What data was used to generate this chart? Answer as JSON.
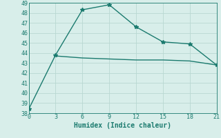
{
  "xlabel": "Humidex (Indice chaleur)",
  "line1_x": [
    0,
    3,
    6,
    9,
    12,
    15,
    18,
    21
  ],
  "line1_y": [
    38.4,
    43.8,
    48.3,
    48.8,
    46.6,
    45.1,
    44.9,
    42.8
  ],
  "line2_x": [
    3,
    6,
    9,
    12,
    15,
    18,
    21
  ],
  "line2_y": [
    43.7,
    43.5,
    43.4,
    43.3,
    43.3,
    43.2,
    42.8
  ],
  "line_color": "#1a7a6e",
  "bg_color": "#d8eeea",
  "grid_color": "#b8d8d2",
  "xlim": [
    0,
    21
  ],
  "ylim": [
    38,
    49
  ],
  "xticks": [
    0,
    3,
    6,
    9,
    12,
    15,
    18,
    21
  ],
  "yticks": [
    38,
    39,
    40,
    41,
    42,
    43,
    44,
    45,
    46,
    47,
    48,
    49
  ],
  "marker_style": "*",
  "marker_size": 4.0,
  "line_width": 1.0,
  "tick_fontsize": 6.0,
  "xlabel_fontsize": 7.0
}
